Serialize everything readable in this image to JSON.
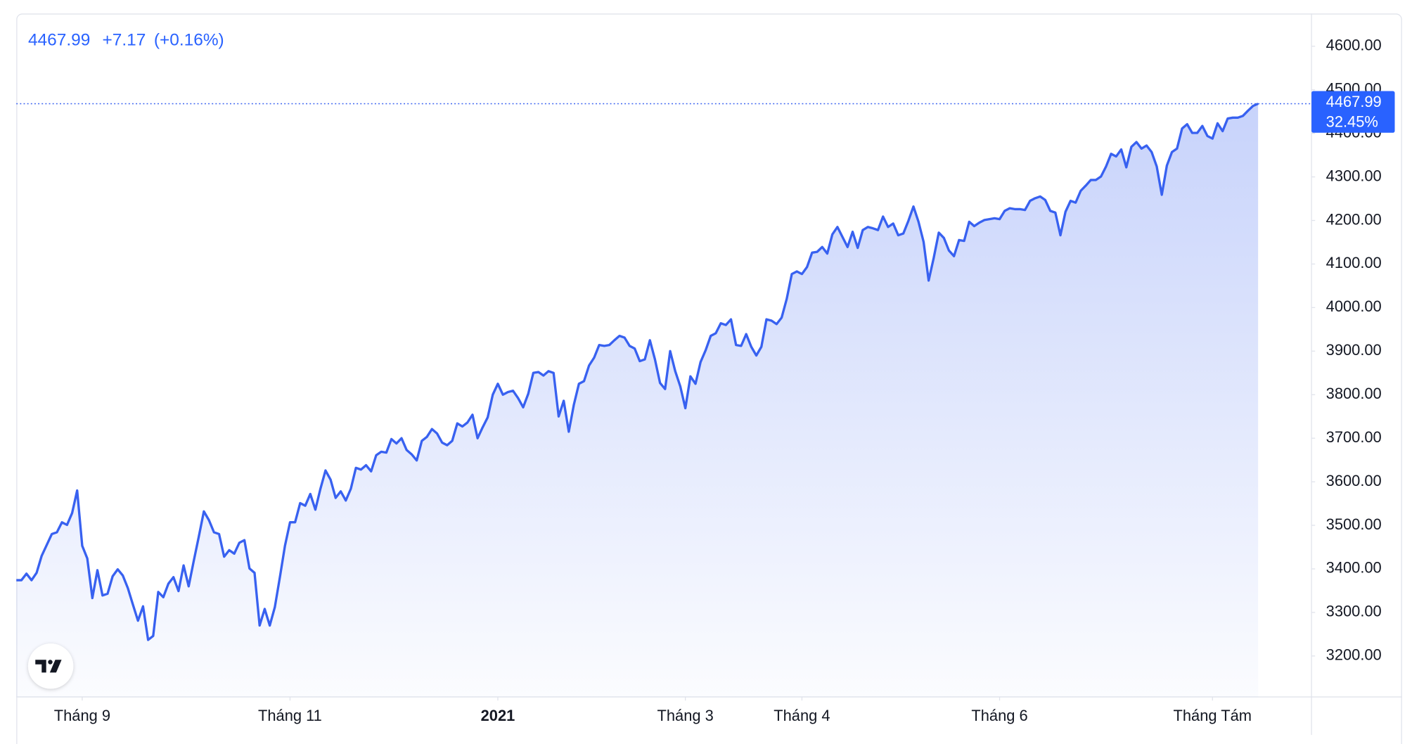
{
  "chart_data": {
    "type": "line",
    "header": {
      "last": "4467.99",
      "change": "+7.17",
      "change_percent": "(+0.16%)"
    },
    "last_percent_label": "32.45%",
    "categories": [
      null,
      null,
      null,
      null,
      null,
      null,
      null,
      null,
      null,
      null,
      null,
      null,
      null,
      "Tháng 9",
      null,
      null,
      null,
      null,
      null,
      null,
      null,
      null,
      null,
      null,
      null,
      null,
      null,
      null,
      null,
      null,
      null,
      null,
      null,
      null,
      null,
      null,
      null,
      null,
      null,
      null,
      null,
      null,
      null,
      null,
      null,
      null,
      null,
      null,
      null,
      null,
      null,
      null,
      null,
      null,
      "Tháng 11",
      null,
      null,
      null,
      null,
      null,
      null,
      null,
      null,
      null,
      null,
      null,
      null,
      null,
      null,
      null,
      null,
      null,
      null,
      null,
      null,
      null,
      null,
      null,
      null,
      null,
      null,
      null,
      null,
      null,
      null,
      null,
      null,
      null,
      null,
      null,
      null,
      null,
      null,
      null,
      null,
      "2021",
      null,
      null,
      null,
      null,
      null,
      null,
      null,
      null,
      null,
      null,
      null,
      null,
      null,
      null,
      null,
      null,
      null,
      null,
      null,
      null,
      null,
      null,
      null,
      null,
      null,
      null,
      null,
      null,
      null,
      null,
      null,
      null,
      null,
      null,
      null,
      null,
      "Tháng 3",
      null,
      null,
      null,
      null,
      null,
      null,
      null,
      null,
      null,
      null,
      null,
      null,
      null,
      null,
      null,
      null,
      null,
      null,
      null,
      null,
      null,
      null,
      "Tháng 4",
      null,
      null,
      null,
      null,
      null,
      null,
      null,
      null,
      null,
      null,
      null,
      null,
      null,
      null,
      null,
      null,
      null,
      null,
      null,
      null,
      null,
      null,
      null,
      null,
      null,
      null,
      null,
      null,
      null,
      null,
      null,
      null,
      null,
      null,
      null,
      null,
      null,
      null,
      "Tháng 6",
      null,
      null,
      null,
      null,
      null,
      null,
      null,
      null,
      null,
      null,
      null,
      null,
      null,
      null,
      null,
      null,
      null,
      null,
      null,
      null,
      null,
      null,
      null,
      null,
      null,
      null,
      null,
      null,
      null,
      null,
      null,
      null,
      null,
      null,
      null,
      null,
      null,
      null,
      null,
      null,
      null,
      "Tháng Tám",
      null,
      null,
      null,
      null,
      null,
      null,
      null,
      null,
      null
    ],
    "series": [
      {
        "color": "#3861f0",
        "values": [
          3374,
          3374,
          3389,
          3374,
          3391,
          3430,
          3455,
          3480,
          3484,
          3507,
          3501,
          3528,
          3580,
          3453,
          3424,
          3333,
          3397,
          3339,
          3343,
          3383,
          3399,
          3385,
          3356,
          3318,
          3281,
          3314,
          3237,
          3246,
          3347,
          3335,
          3366,
          3381,
          3349,
          3408,
          3360,
          3418,
          3474,
          3532,
          3512,
          3484,
          3480,
          3428,
          3443,
          3435,
          3460,
          3466,
          3401,
          3391,
          3270,
          3308,
          3270,
          3312,
          3381,
          3453,
          3507,
          3507,
          3551,
          3545,
          3572,
          3536,
          3584,
          3626,
          3605,
          3563,
          3578,
          3557,
          3584,
          3632,
          3628,
          3638,
          3624,
          3661,
          3669,
          3667,
          3698,
          3688,
          3700,
          3673,
          3663,
          3649,
          3694,
          3703,
          3721,
          3711,
          3690,
          3684,
          3694,
          3734,
          3727,
          3736,
          3754,
          3700,
          3725,
          3748,
          3800,
          3825,
          3800,
          3806,
          3809,
          3792,
          3771,
          3802,
          3850,
          3852,
          3844,
          3854,
          3850,
          3750,
          3786,
          3715,
          3777,
          3825,
          3831,
          3867,
          3885,
          3914,
          3912,
          3914,
          3925,
          3935,
          3931,
          3912,
          3906,
          3877,
          3881,
          3925,
          3881,
          3827,
          3813,
          3900,
          3854,
          3819,
          3769,
          3842,
          3825,
          3875,
          3902,
          3935,
          3941,
          3964,
          3960,
          3973,
          3914,
          3912,
          3939,
          3910,
          3890,
          3910,
          3973,
          3970,
          3962,
          3977,
          4020,
          4077,
          4083,
          4077,
          4093,
          4126,
          4128,
          4139,
          4124,
          4168,
          4185,
          4162,
          4139,
          4174,
          4137,
          4178,
          4185,
          4182,
          4178,
          4209,
          4185,
          4193,
          4166,
          4170,
          4199,
          4232,
          4197,
          4151,
          4062,
          4114,
          4172,
          4160,
          4131,
          4118,
          4155,
          4153,
          4197,
          4187,
          4195,
          4201,
          4203,
          4205,
          4203,
          4222,
          4228,
          4226,
          4226,
          4224,
          4245,
          4251,
          4255,
          4247,
          4222,
          4218,
          4166,
          4220,
          4245,
          4241,
          4268,
          4280,
          4293,
          4293,
          4301,
          4324,
          4353,
          4347,
          4363,
          4322,
          4369,
          4380,
          4365,
          4372,
          4357,
          4324,
          4259,
          4326,
          4357,
          4365,
          4411,
          4421,
          4401,
          4401,
          4417,
          4394,
          4388,
          4423,
          4405,
          4434,
          4436,
          4436,
          4440,
          4452,
          4463,
          4467.99
        ]
      }
    ],
    "ylim": [
      3106,
      4675
    ],
    "yticks": [
      {
        "value": 3200,
        "label": "3200.00"
      },
      {
        "value": 3300,
        "label": "3300.00"
      },
      {
        "value": 3400,
        "label": "3400.00"
      },
      {
        "value": 3500,
        "label": "3500.00"
      },
      {
        "value": 3600,
        "label": "3600.00"
      },
      {
        "value": 3700,
        "label": "3700.00"
      },
      {
        "value": 3800,
        "label": "3800.00"
      },
      {
        "value": 3900,
        "label": "3900.00"
      },
      {
        "value": 4000,
        "label": "4000.00"
      },
      {
        "value": 4100,
        "label": "4100.00"
      },
      {
        "value": 4200,
        "label": "4200.00"
      },
      {
        "value": 4300,
        "label": "4300.00"
      },
      {
        "value": 4400,
        "label": "4400.00"
      },
      {
        "value": 4500,
        "label": "4500.00"
      },
      {
        "value": 4600,
        "label": "4600.00"
      }
    ],
    "grid": false
  }
}
